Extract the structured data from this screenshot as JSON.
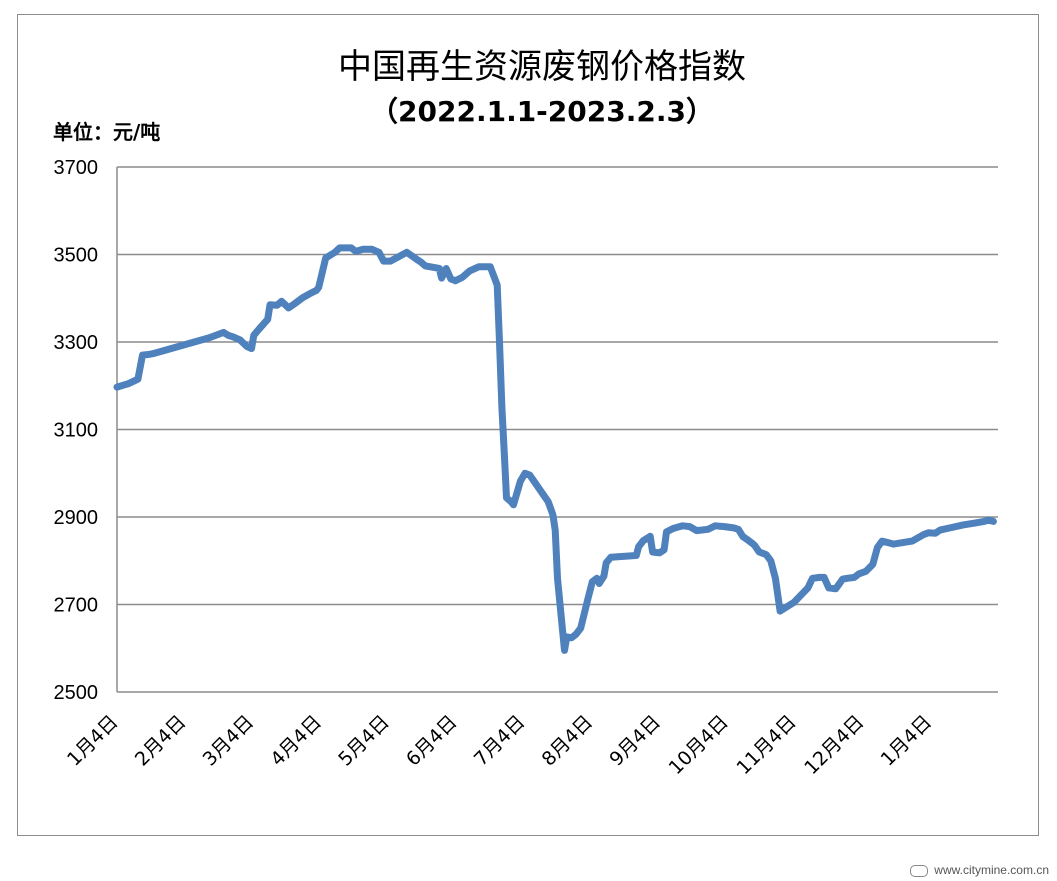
{
  "chart_data": {
    "type": "line",
    "title": "中国再生资源废钢价格指数",
    "subtitle": "（2022.1.1-2023.2.3）",
    "unit_label": "单位：元/吨",
    "xlabel": "",
    "ylabel": "",
    "ylim": [
      2500,
      3700
    ],
    "yticks": [
      3700,
      3500,
      3300,
      3100,
      2900,
      2700,
      2500
    ],
    "x_tick_labels": [
      "1月4日",
      "2月4日",
      "3月4日",
      "4月4日",
      "5月4日",
      "6月4日",
      "7月4日",
      "8月4日",
      "9月4日",
      "10月4日",
      "11月4日",
      "12月4日",
      "1月4日"
    ],
    "grid": true,
    "legend": "none",
    "line_color": "#4f81bd",
    "series": [
      {
        "points": [
          [
            0,
            3197
          ],
          [
            5,
            3205
          ],
          [
            9,
            3215
          ],
          [
            11,
            3270
          ],
          [
            14,
            3272
          ],
          [
            16,
            3274
          ],
          [
            40,
            3310
          ],
          [
            44,
            3318
          ],
          [
            46,
            3322
          ],
          [
            48,
            3315
          ],
          [
            50,
            3312
          ],
          [
            53,
            3305
          ],
          [
            56,
            3290
          ],
          [
            58,
            3285
          ],
          [
            59,
            3315
          ],
          [
            61,
            3328
          ],
          [
            63,
            3340
          ],
          [
            65,
            3352
          ],
          [
            66,
            3385
          ],
          [
            69,
            3384
          ],
          [
            71,
            3393
          ],
          [
            74,
            3378
          ],
          [
            77,
            3389
          ],
          [
            80,
            3401
          ],
          [
            83,
            3410
          ],
          [
            86,
            3418
          ],
          [
            87,
            3425
          ],
          [
            90,
            3492
          ],
          [
            94,
            3505
          ],
          [
            96,
            3515
          ],
          [
            101,
            3515
          ],
          [
            103,
            3507
          ],
          [
            106,
            3512
          ],
          [
            110,
            3512
          ],
          [
            113,
            3505
          ],
          [
            115,
            3485
          ],
          [
            118,
            3485
          ],
          [
            125,
            3505
          ],
          [
            129,
            3490
          ],
          [
            131,
            3483
          ],
          [
            133,
            3474
          ],
          [
            137,
            3470
          ],
          [
            139,
            3468
          ],
          [
            140,
            3446
          ],
          [
            142,
            3468
          ],
          [
            144,
            3444
          ],
          [
            146,
            3440
          ],
          [
            149,
            3448
          ],
          [
            152,
            3462
          ],
          [
            156,
            3472
          ],
          [
            161,
            3472
          ],
          [
            164,
            3430
          ],
          [
            165,
            3300
          ],
          [
            166,
            3150
          ],
          [
            167,
            3050
          ],
          [
            168,
            2944
          ],
          [
            170,
            2935
          ],
          [
            171,
            2928
          ],
          [
            174,
            2982
          ],
          [
            176,
            3000
          ],
          [
            178,
            2996
          ],
          [
            186,
            2935
          ],
          [
            188,
            2905
          ],
          [
            189,
            2870
          ],
          [
            190,
            2760
          ],
          [
            193,
            2595
          ],
          [
            194,
            2626
          ],
          [
            196,
            2624
          ],
          [
            198,
            2632
          ],
          [
            200,
            2646
          ],
          [
            203,
            2710
          ],
          [
            205,
            2752
          ],
          [
            207,
            2760
          ],
          [
            208,
            2748
          ],
          [
            210,
            2765
          ],
          [
            211,
            2795
          ],
          [
            213,
            2808
          ],
          [
            224,
            2812
          ],
          [
            225,
            2832
          ],
          [
            227,
            2846
          ],
          [
            230,
            2856
          ],
          [
            231,
            2820
          ],
          [
            234,
            2818
          ],
          [
            236,
            2825
          ],
          [
            237,
            2866
          ],
          [
            240,
            2874
          ],
          [
            244,
            2880
          ],
          [
            247,
            2878
          ],
          [
            250,
            2869
          ],
          [
            255,
            2872
          ],
          [
            258,
            2880
          ],
          [
            262,
            2878
          ],
          [
            266,
            2875
          ],
          [
            268,
            2872
          ],
          [
            270,
            2855
          ],
          [
            272,
            2848
          ],
          [
            274,
            2840
          ],
          [
            275,
            2835
          ],
          [
            277,
            2820
          ],
          [
            280,
            2814
          ],
          [
            282,
            2800
          ],
          [
            284,
            2760
          ],
          [
            286,
            2685
          ],
          [
            292,
            2705
          ],
          [
            298,
            2738
          ],
          [
            300,
            2760
          ],
          [
            303,
            2762
          ],
          [
            305,
            2762
          ],
          [
            307,
            2738
          ],
          [
            310,
            2736
          ],
          [
            313,
            2758
          ],
          [
            315,
            2760
          ],
          [
            318,
            2762
          ],
          [
            320,
            2770
          ],
          [
            323,
            2776
          ],
          [
            326,
            2792
          ],
          [
            328,
            2830
          ],
          [
            330,
            2845
          ],
          [
            335,
            2838
          ],
          [
            343,
            2845
          ],
          [
            348,
            2860
          ],
          [
            350,
            2864
          ],
          [
            353,
            2863
          ],
          [
            355,
            2870
          ],
          [
            360,
            2876
          ],
          [
            365,
            2882
          ],
          [
            370,
            2886
          ],
          [
            374,
            2890
          ],
          [
            376,
            2893
          ],
          [
            378,
            2890
          ]
        ]
      }
    ]
  },
  "watermark": "www.citymine.com.cn"
}
